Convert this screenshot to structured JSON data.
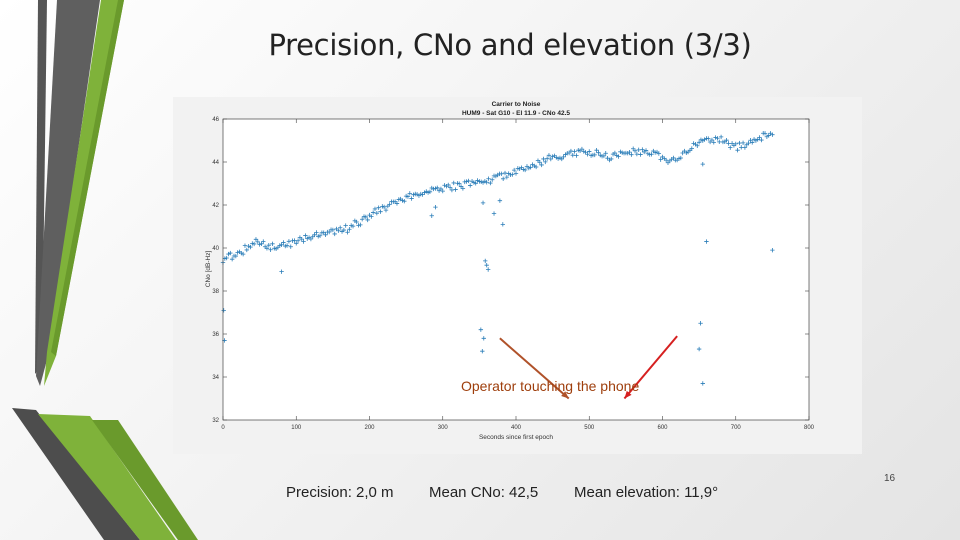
{
  "slide": {
    "title": "Precision, CNo and elevation (3/3)",
    "page_number": "16",
    "footer": {
      "precision": "Precision: 2,0 m",
      "mean_cno": "Mean CNo: 42,5",
      "mean_elevation": "Mean elevation: 11,9°"
    },
    "annotation": "Operator touching the phone"
  },
  "colors": {
    "accent_green": "#7fb23a",
    "dark_bar": "#555555",
    "series_blue": "#2a7db8",
    "arrow_brown": "#b0522a",
    "arrow_red": "#d62020"
  },
  "chart_data": {
    "type": "scatter",
    "title": "Carrier to Noise",
    "subtitle": "HUM9 - Sat G10 - El 11.9 - CNo 42.5",
    "xlabel": "Seconds since first epoch",
    "ylabel": "CNo [dB-Hz]",
    "xlim": [
      0,
      800
    ],
    "ylim": [
      32,
      46
    ],
    "xticks": [
      0,
      100,
      200,
      300,
      400,
      500,
      600,
      700,
      800
    ],
    "yticks": [
      32,
      34,
      36,
      38,
      40,
      42,
      44,
      46
    ],
    "marker": "+",
    "trend": [
      [
        0,
        39.5
      ],
      [
        20,
        39.7
      ],
      [
        45,
        40.3
      ],
      [
        60,
        40.1
      ],
      [
        75,
        40.0
      ],
      [
        90,
        40.2
      ],
      [
        120,
        40.5
      ],
      [
        150,
        40.7
      ],
      [
        170,
        40.9
      ],
      [
        190,
        41.3
      ],
      [
        210,
        41.7
      ],
      [
        240,
        42.2
      ],
      [
        265,
        42.5
      ],
      [
        290,
        42.7
      ],
      [
        320,
        42.9
      ],
      [
        345,
        43.0
      ],
      [
        360,
        43.1
      ],
      [
        380,
        43.3
      ],
      [
        400,
        43.6
      ],
      [
        420,
        43.8
      ],
      [
        440,
        44.1
      ],
      [
        465,
        44.3
      ],
      [
        490,
        44.5
      ],
      [
        510,
        44.4
      ],
      [
        530,
        44.2
      ],
      [
        550,
        44.4
      ],
      [
        570,
        44.5
      ],
      [
        585,
        44.4
      ],
      [
        605,
        44.1
      ],
      [
        625,
        44.3
      ],
      [
        640,
        44.7
      ],
      [
        660,
        45.0
      ],
      [
        680,
        45.0
      ],
      [
        700,
        44.7
      ],
      [
        715,
        44.8
      ],
      [
        730,
        45.1
      ],
      [
        745,
        45.3
      ],
      [
        750,
        45.3
      ]
    ],
    "outliers": [
      [
        1,
        37.1
      ],
      [
        2,
        35.7
      ],
      [
        80,
        38.9
      ],
      [
        285,
        41.5
      ],
      [
        290,
        41.9
      ],
      [
        355,
        42.1
      ],
      [
        358,
        39.4
      ],
      [
        360,
        39.2
      ],
      [
        362,
        39.0
      ],
      [
        352,
        36.2
      ],
      [
        356,
        35.8
      ],
      [
        354,
        35.2
      ],
      [
        370,
        41.6
      ],
      [
        378,
        42.2
      ],
      [
        382,
        41.1
      ],
      [
        655,
        43.9
      ],
      [
        660,
        40.3
      ],
      [
        652,
        36.5
      ],
      [
        650,
        35.3
      ],
      [
        655,
        33.7
      ],
      [
        750,
        39.9
      ]
    ],
    "arrows": [
      {
        "from": [
          378,
          35.8
        ],
        "to": [
          472,
          33.0
        ]
      },
      {
        "from": [
          620,
          35.9
        ],
        "to": [
          548,
          33.0
        ]
      }
    ]
  }
}
